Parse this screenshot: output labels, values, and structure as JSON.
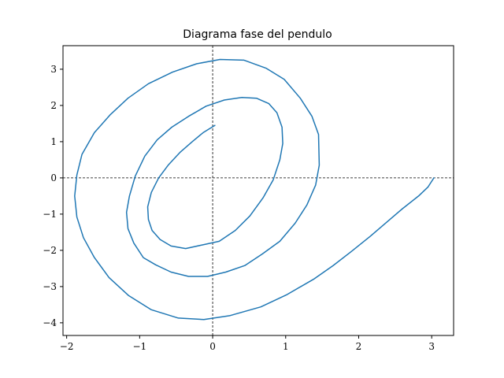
{
  "chart_data": {
    "type": "line",
    "title": "Diagrama fase del pendulo",
    "xlabel": "",
    "ylabel": "",
    "xlim": [
      -2.05,
      3.3
    ],
    "ylim": [
      -4.35,
      3.65
    ],
    "x_ticks": [
      {
        "value": -2,
        "label": "−2"
      },
      {
        "value": -1,
        "label": "−1"
      },
      {
        "value": 0,
        "label": "0"
      },
      {
        "value": 1,
        "label": "1"
      },
      {
        "value": 2,
        "label": "2"
      },
      {
        "value": 3,
        "label": "3"
      }
    ],
    "y_ticks": [
      {
        "value": 3,
        "label": "3"
      },
      {
        "value": 2,
        "label": "2"
      },
      {
        "value": 1,
        "label": "1"
      },
      {
        "value": 0,
        "label": "0"
      },
      {
        "value": -1,
        "label": "−1"
      },
      {
        "value": -2,
        "label": "−2"
      },
      {
        "value": -3,
        "label": "−3"
      },
      {
        "value": -4,
        "label": "−4"
      }
    ],
    "reference_lines": {
      "x": 0,
      "y": 0,
      "style": "dashed"
    },
    "grid": false,
    "legend": "none",
    "series": [
      {
        "color": "#1f77b4",
        "x": [
          3.03,
          2.95,
          2.82,
          2.6,
          2.38,
          2.16,
          1.9,
          1.65,
          1.38,
          1.01,
          0.66,
          0.24,
          -0.12,
          -0.47,
          -0.84,
          -1.15,
          -1.42,
          -1.62,
          -1.77,
          -1.86,
          -1.89,
          -1.86,
          -1.79,
          -1.62,
          -1.4,
          -1.16,
          -0.88,
          -0.55,
          -0.22,
          0.1,
          0.43,
          0.73,
          0.98,
          1.2,
          1.36,
          1.45,
          1.46,
          1.41,
          1.29,
          1.13,
          0.92,
          0.68,
          0.44,
          0.18,
          -0.07,
          -0.33,
          -0.57,
          -0.78,
          -0.95,
          -1.08,
          -1.16,
          -1.18,
          -1.14,
          -1.06,
          -0.93,
          -0.76,
          -0.56,
          -0.33,
          -0.09,
          0.16,
          0.4,
          0.6,
          0.77,
          0.88,
          0.95,
          0.96,
          0.92,
          0.83,
          0.69,
          0.51,
          0.31,
          0.09,
          -0.14,
          -0.37,
          -0.57,
          -0.72,
          -0.83,
          -0.88,
          -0.89,
          -0.84,
          -0.74,
          -0.61,
          -0.45,
          -0.28,
          -0.13,
          0.03
        ],
        "y": [
          0.0,
          -0.25,
          -0.5,
          -0.85,
          -1.23,
          -1.61,
          -2.03,
          -2.42,
          -2.8,
          -3.23,
          -3.56,
          -3.8,
          -3.91,
          -3.87,
          -3.64,
          -3.25,
          -2.75,
          -2.2,
          -1.65,
          -1.08,
          -0.5,
          0.08,
          0.65,
          1.25,
          1.75,
          2.2,
          2.6,
          2.92,
          3.15,
          3.27,
          3.25,
          3.03,
          2.72,
          2.2,
          1.7,
          1.2,
          0.35,
          -0.2,
          -0.75,
          -1.25,
          -1.75,
          -2.1,
          -2.42,
          -2.6,
          -2.72,
          -2.72,
          -2.6,
          -2.4,
          -2.2,
          -1.8,
          -1.4,
          -0.95,
          -0.5,
          0.05,
          0.6,
          1.05,
          1.4,
          1.7,
          1.98,
          2.15,
          2.22,
          2.2,
          2.05,
          1.8,
          1.4,
          0.95,
          0.5,
          -0.05,
          -0.55,
          -1.05,
          -1.45,
          -1.75,
          -1.85,
          -1.95,
          -1.88,
          -1.7,
          -1.45,
          -1.15,
          -0.8,
          -0.4,
          0.0,
          0.35,
          0.7,
          1.0,
          1.25,
          1.45
        ]
      }
    ]
  }
}
